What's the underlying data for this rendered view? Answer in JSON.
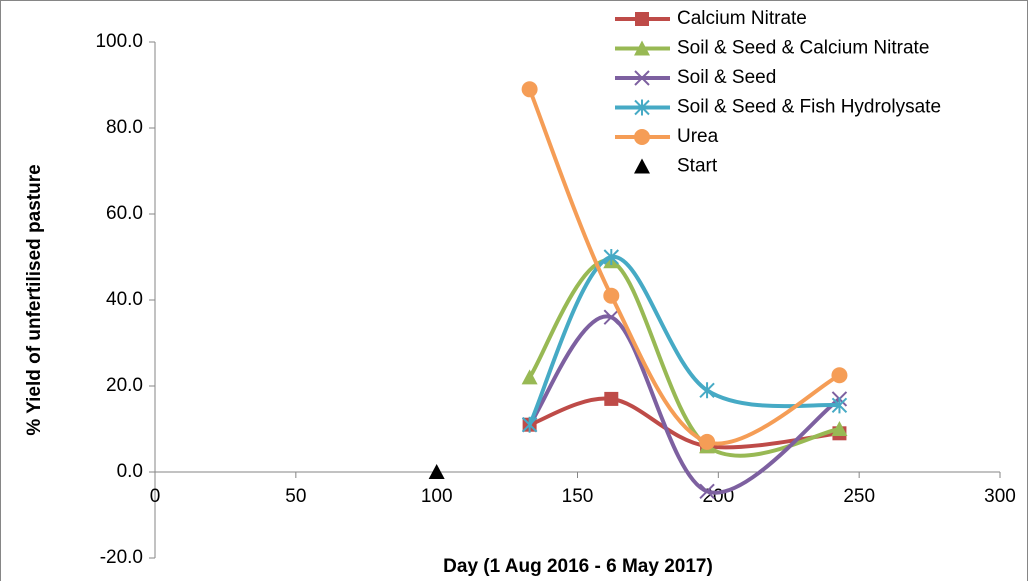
{
  "chart_data": {
    "type": "scatter",
    "x_label": "Day (1 Aug 2016  - 6 May 2017)",
    "y_label": "% Yield of unfertilised pasture",
    "xlim": [
      0,
      300
    ],
    "xticks": [
      0,
      50,
      100,
      150,
      200,
      250,
      300
    ],
    "ylim": [
      -20,
      100
    ],
    "yticks": [
      {
        "value": -20,
        "label": "-20.0"
      },
      {
        "value": 0,
        "label": "0.0"
      },
      {
        "value": 20,
        "label": "20.0"
      },
      {
        "value": 40,
        "label": "40.0"
      },
      {
        "value": 60,
        "label": "60.0"
      },
      {
        "value": 80,
        "label": "80.0"
      },
      {
        "value": 100,
        "label": "100.0"
      }
    ],
    "series": [
      {
        "name": "Calcium Nitrate",
        "color": "#be4b48",
        "marker": "square",
        "line": true,
        "x": [
          133,
          162,
          196,
          243
        ],
        "values": [
          11,
          17,
          6,
          9
        ]
      },
      {
        "name": "Soil & Seed & Calcium Nitrate",
        "color": "#98b954",
        "marker": "triangle",
        "line": true,
        "x": [
          133,
          162,
          196,
          243
        ],
        "values": [
          22,
          49,
          6,
          10
        ]
      },
      {
        "name": "Soil & Seed",
        "color": "#7d60a0",
        "marker": "x",
        "line": true,
        "x": [
          133,
          162,
          196,
          243
        ],
        "values": [
          11,
          36,
          -4.5,
          17
        ]
      },
      {
        "name": "Soil & Seed & Fish Hydrolysate",
        "color": "#46aac5",
        "marker": "star",
        "line": true,
        "x": [
          133,
          162,
          196,
          243
        ],
        "values": [
          11,
          50,
          19,
          15.5
        ]
      },
      {
        "name": "Urea",
        "color": "#f59d56",
        "marker": "circle",
        "line": true,
        "x": [
          133,
          162,
          196,
          243
        ],
        "values": [
          89,
          41,
          7,
          22.5
        ]
      },
      {
        "name": "Start",
        "color": "#000000",
        "marker": "triangle",
        "line": false,
        "x": [
          100
        ],
        "values": [
          0
        ]
      }
    ]
  }
}
